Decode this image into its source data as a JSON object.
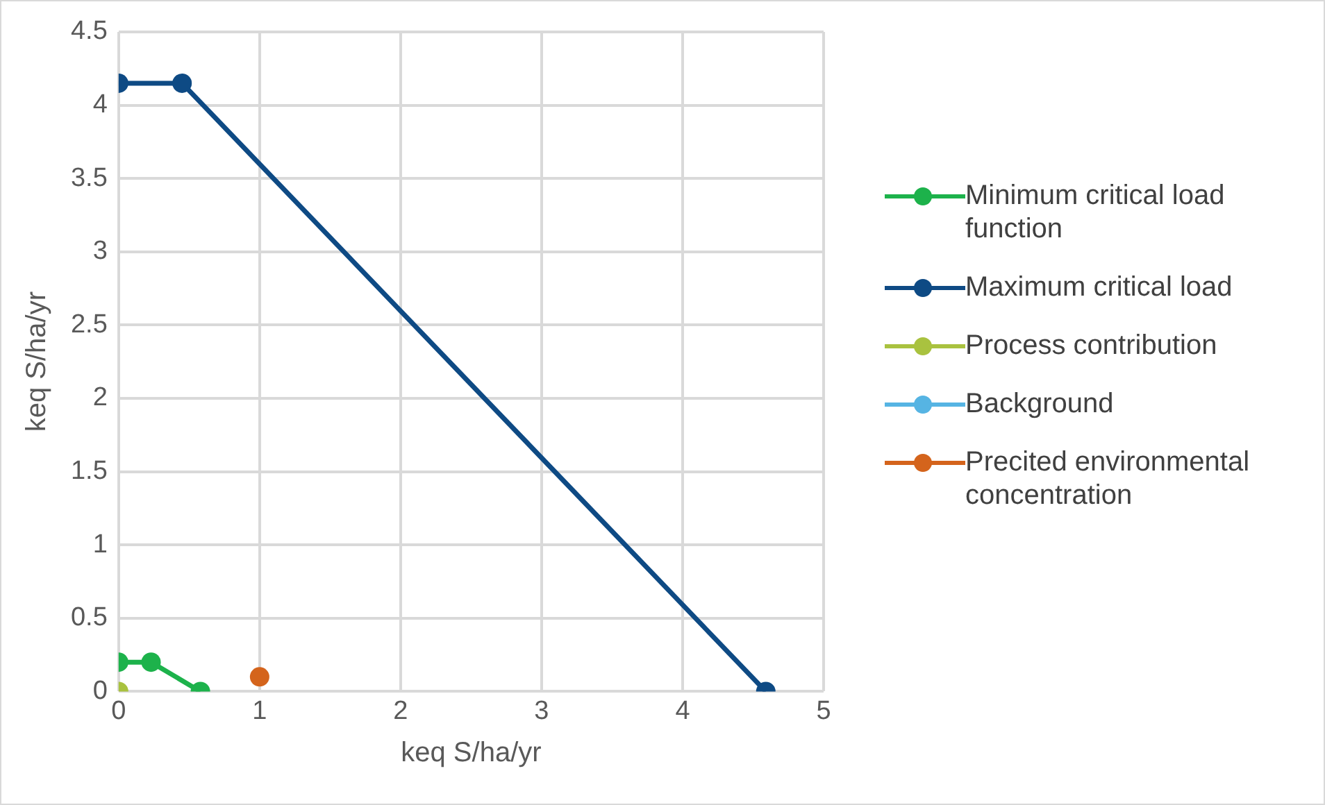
{
  "chart_data": {
    "type": "line",
    "xlabel": "keq S/ha/yr",
    "ylabel": "keq S/ha/yr",
    "xlim": [
      0,
      5
    ],
    "xticks": [
      0,
      1,
      2,
      3,
      4,
      5
    ],
    "ylim": [
      0,
      4.5
    ],
    "yticks": [
      0,
      0.5,
      1,
      1.5,
      2,
      2.5,
      3,
      3.5,
      4,
      4.5
    ],
    "series": [
      {
        "name": "Minimum critical load function",
        "color": "#1db24b",
        "x": [
          0,
          0.23,
          0.58
        ],
        "values": [
          0.2,
          0.2,
          0
        ]
      },
      {
        "name": "Maximum critical load",
        "color": "#0e4a84",
        "x": [
          0,
          0.45,
          4.59
        ],
        "values": [
          4.15,
          4.15,
          0
        ]
      },
      {
        "name": "Process contribution",
        "color": "#a9c23f",
        "x": [
          0
        ],
        "values": [
          0
        ]
      },
      {
        "name": "Background",
        "color": "#56b4e3"
      },
      {
        "name": "Precited environmental concentration",
        "color": "#d4641c",
        "x": [
          1
        ],
        "values": [
          0.1
        ]
      }
    ],
    "grid": true,
    "legend": "right",
    "marker": "circle",
    "line_style": "solid"
  }
}
